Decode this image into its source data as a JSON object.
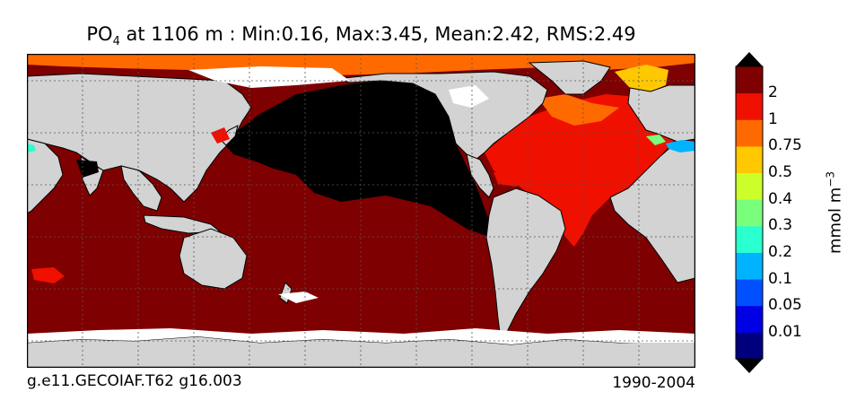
{
  "title": {
    "var_main": "PO",
    "var_sub": "4",
    "rest": " at 1106 m : Min:0.16, Max:3.45, Mean:2.42, RMS:2.49"
  },
  "caption_left": "g.e11.GECOIAF.T62 g16.003",
  "caption_right": "1990-2004",
  "colorbar": {
    "units_main": "mmol m",
    "units_sup": "−3",
    "ticks": [
      "0.01",
      "0.05",
      "0.1",
      "0.2",
      "0.3",
      "0.4",
      "0.5",
      "0.75",
      "1",
      "2"
    ],
    "colors": [
      "#00007f",
      "#0000e5",
      "#0050ff",
      "#00b3ff",
      "#2affd0",
      "#7aff7d",
      "#ccff2a",
      "#ffc800",
      "#ff6a00",
      "#f01000",
      "#7f0000"
    ],
    "extend": "both"
  },
  "map": {
    "projection": "cylindrical",
    "gridlines": true,
    "colors": {
      "land": "#d3d3d3",
      "ice_missing": "#ffffff",
      "southern_ocean_indian_pacific": "#7f0000",
      "north_pacific": "#000000",
      "atlantic": "#f01000",
      "arctic": "#ff6a00",
      "nordic_seas": "#ffc800",
      "mediterranean": "#00b3ff",
      "red_sea": "#2affd0"
    }
  }
}
